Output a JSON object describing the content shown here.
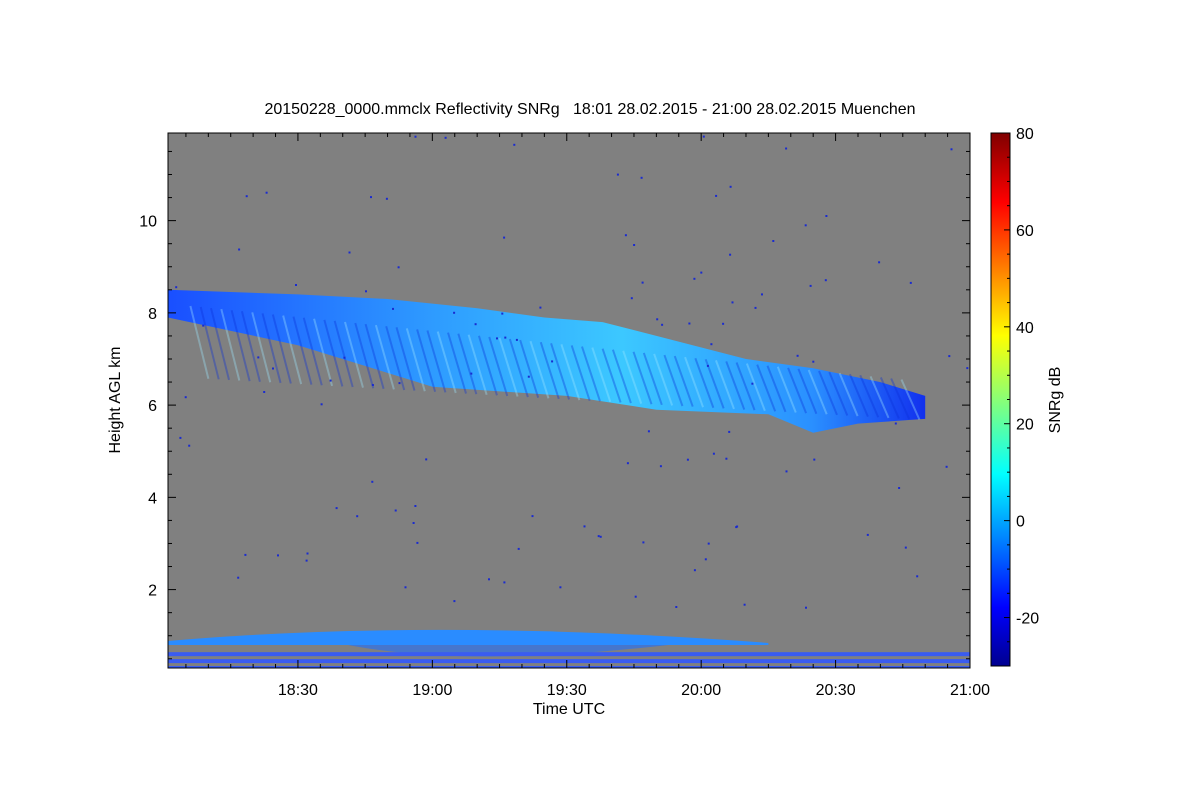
{
  "chart_data": {
    "type": "heatmap",
    "title": "20150228_0000.mmclx Reflectivity SNRg   18:01 28.02.2015 - 21:00 28.02.2015 Muenchen",
    "xlabel": "Time UTC",
    "ylabel": "Height AGL km",
    "colorbar_label": "SNRg dB",
    "x_range": [
      "18:01",
      "21:00"
    ],
    "x_ticks": [
      "18:30",
      "19:00",
      "19:30",
      "20:00",
      "20:30",
      "21:00"
    ],
    "y_range_km": [
      0.3,
      11.9
    ],
    "y_ticks": [
      2,
      4,
      6,
      8,
      10
    ],
    "colorbar_range_db": [
      -30,
      80
    ],
    "colorbar_ticks": [
      -20,
      0,
      20,
      40,
      60,
      80
    ],
    "colormap": "jet",
    "background_color": "#808080",
    "features": [
      {
        "name": "upper cloud layer",
        "typical_snr_db": [
          -25,
          5
        ],
        "top_km": [
          [
            "18:01",
            8.5
          ],
          [
            "18:30",
            8.4
          ],
          [
            "18:50",
            8.3
          ],
          [
            "19:10",
            8.1
          ],
          [
            "19:25",
            7.9
          ],
          [
            "19:38",
            7.8
          ],
          [
            "19:50",
            7.5
          ],
          [
            "20:10",
            7.0
          ],
          [
            "20:25",
            6.8
          ],
          [
            "20:40",
            6.5
          ],
          [
            "20:50",
            6.2
          ]
        ],
        "base_km": [
          [
            "18:01",
            7.9
          ],
          [
            "18:30",
            7.3
          ],
          [
            "19:00",
            6.4
          ],
          [
            "19:30",
            6.2
          ],
          [
            "19:50",
            5.9
          ],
          [
            "20:15",
            5.8
          ],
          [
            "20:25",
            5.4
          ],
          [
            "20:35",
            5.6
          ],
          [
            "20:50",
            5.7
          ]
        ]
      },
      {
        "name": "low cloud layer",
        "typical_snr_db": [
          -10,
          10
        ],
        "top_km": 1.3,
        "base_km": 0.8,
        "x_range": [
          "18:01",
          "20:15"
        ]
      },
      {
        "name": "near-surface clutter",
        "typical_snr_db": [
          -20,
          -10
        ],
        "heights_km": [
          0.3,
          0.45,
          0.6
        ],
        "x_range": [
          "18:01",
          "21:00"
        ]
      }
    ]
  }
}
